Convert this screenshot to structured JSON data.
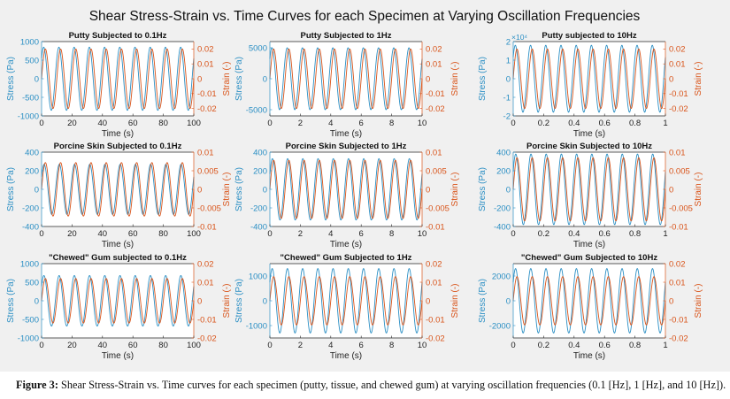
{
  "figure": {
    "suptitle": "Shear Stress-Strain vs. Time Curves for each Specimen at Varying Oscillation Frequencies",
    "caption_label": "Figure 3:",
    "caption_text": " Shear Stress-Strain vs. Time curves for each specimen (putty, tissue, and chewed gum) at varying oscillation frequencies (0.1 [Hz], 1 [Hz], and 10 [Hz])."
  },
  "colors": {
    "stress": "#2b8fc4",
    "strain": "#d9541a",
    "axis": "#262626",
    "background": "#f0f0f0",
    "plot_bg": "#ffffff"
  },
  "chart_data": [
    {
      "type": "line",
      "title": "Putty Subjected to 0.1Hz",
      "xlabel": "Time (s)",
      "ylabel_left": "Stress (Pa)",
      "ylabel_right": "Strain (-)",
      "xlim": [
        0,
        100
      ],
      "xticks": [
        "0",
        "20",
        "40",
        "60",
        "80",
        "100"
      ],
      "ylim_left": [
        -1000,
        1000
      ],
      "yticks_left": [
        "-1000",
        "-500",
        "0",
        "500",
        "1000"
      ],
      "ytick_values_left": [
        -1000,
        -500,
        0,
        500,
        1000
      ],
      "left_exponent": "",
      "ylim_right": [
        -0.025,
        0.025
      ],
      "yticks_right": [
        "-0.02",
        "-0.01",
        "0",
        "0.01",
        "0.02"
      ],
      "ytick_values_right": [
        -0.02,
        -0.01,
        0,
        0.01,
        0.02
      ],
      "series": [
        {
          "name": "Stress",
          "axis": "left",
          "amplitude": 850,
          "frequency_hz": 0.1,
          "phase_deg": 40
        },
        {
          "name": "Strain",
          "axis": "right",
          "amplitude": 0.02,
          "frequency_hz": 0.1,
          "phase_deg": 0
        }
      ]
    },
    {
      "type": "line",
      "title": "Putty Subjected to 1Hz",
      "xlabel": "Time (s)",
      "ylabel_left": "Stress (Pa)",
      "ylabel_right": "Strain (-)",
      "xlim": [
        0,
        10
      ],
      "xticks": [
        "0",
        "2",
        "4",
        "6",
        "8",
        "10"
      ],
      "ylim_left": [
        -6000,
        6000
      ],
      "yticks_left": [
        "-5000",
        "0",
        "5000"
      ],
      "ytick_values_left": [
        -5000,
        0,
        5000
      ],
      "left_exponent": "",
      "ylim_right": [
        -0.025,
        0.025
      ],
      "yticks_right": [
        "-0.02",
        "-0.01",
        "0",
        "0.01",
        "0.02"
      ],
      "ytick_values_right": [
        -0.02,
        -0.01,
        0,
        0.01,
        0.02
      ],
      "series": [
        {
          "name": "Stress",
          "axis": "left",
          "amplitude": 5000,
          "frequency_hz": 1,
          "phase_deg": 40
        },
        {
          "name": "Strain",
          "axis": "right",
          "amplitude": 0.02,
          "frequency_hz": 1,
          "phase_deg": 0
        }
      ]
    },
    {
      "type": "line",
      "title": "Putty subjected to 10Hz",
      "xlabel": "Time (s)",
      "ylabel_left": "Stress (Pa)",
      "ylabel_right": "Strain (-)",
      "xlim": [
        0,
        1
      ],
      "xticks": [
        "0",
        "0.2",
        "0.4",
        "0.6",
        "0.8",
        "1"
      ],
      "ylim_left": [
        -20000,
        20000
      ],
      "yticks_left": [
        "-2",
        "-1",
        "0",
        "1",
        "2"
      ],
      "ytick_values_left": [
        -20000,
        -10000,
        0,
        10000,
        20000
      ],
      "left_exponent": "×10⁴",
      "ylim_right": [
        -0.025,
        0.025
      ],
      "yticks_right": [
        "-0.02",
        "-0.01",
        "0",
        "0.01",
        "0.02"
      ],
      "ytick_values_right": [
        -0.02,
        -0.01,
        0,
        0.01,
        0.02
      ],
      "series": [
        {
          "name": "Stress",
          "axis": "left",
          "amplitude": 18000,
          "frequency_hz": 10,
          "phase_deg": 40
        },
        {
          "name": "Strain",
          "axis": "right",
          "amplitude": 0.02,
          "frequency_hz": 10,
          "phase_deg": 0
        }
      ]
    },
    {
      "type": "line",
      "title": "Porcine Skin Subjected to 0.1Hz",
      "xlabel": "Time (s)",
      "ylabel_left": "Stress (Pa)",
      "ylabel_right": "Strain (-)",
      "xlim": [
        0,
        100
      ],
      "xticks": [
        "0",
        "20",
        "40",
        "60",
        "80",
        "100"
      ],
      "ylim_left": [
        -400,
        400
      ],
      "yticks_left": [
        "-400",
        "-200",
        "0",
        "200",
        "400"
      ],
      "ytick_values_left": [
        -400,
        -200,
        0,
        200,
        400
      ],
      "left_exponent": "",
      "ylim_right": [
        -0.01,
        0.01
      ],
      "yticks_right": [
        "-0.01",
        "-0.005",
        "0",
        "0.005",
        "0.01"
      ],
      "ytick_values_right": [
        -0.01,
        -0.005,
        0,
        0.005,
        0.01
      ],
      "series": [
        {
          "name": "Stress",
          "axis": "left",
          "amplitude": 270,
          "frequency_hz": 0.1,
          "phase_deg": 30
        },
        {
          "name": "Strain",
          "axis": "right",
          "amplitude": 0.0072,
          "frequency_hz": 0.1,
          "phase_deg": 0
        }
      ]
    },
    {
      "type": "line",
      "title": "Porcine Skin Subjected to 1Hz",
      "xlabel": "Time (s)",
      "ylabel_left": "Stress (Pa)",
      "ylabel_right": "Strain (-)",
      "xlim": [
        0,
        10
      ],
      "xticks": [
        "0",
        "2",
        "4",
        "6",
        "8",
        "10"
      ],
      "ylim_left": [
        -400,
        400
      ],
      "yticks_left": [
        "-400",
        "-200",
        "0",
        "200",
        "400"
      ],
      "ytick_values_left": [
        -400,
        -200,
        0,
        200,
        400
      ],
      "left_exponent": "",
      "ylim_right": [
        -0.01,
        0.01
      ],
      "yticks_right": [
        "-0.01",
        "-0.005",
        "0",
        "0.005",
        "0.01"
      ],
      "ytick_values_right": [
        -0.01,
        -0.005,
        0,
        0.005,
        0.01
      ],
      "series": [
        {
          "name": "Stress",
          "axis": "left",
          "amplitude": 330,
          "frequency_hz": 1,
          "phase_deg": 30
        },
        {
          "name": "Strain",
          "axis": "right",
          "amplitude": 0.0078,
          "frequency_hz": 1,
          "phase_deg": 0
        }
      ]
    },
    {
      "type": "line",
      "title": "Porcine Skin Subjected to 10Hz",
      "xlabel": "Time (s)",
      "ylabel_left": "Stress (Pa)",
      "ylabel_right": "Strain (-)",
      "xlim": [
        0,
        1
      ],
      "xticks": [
        "0",
        "0.2",
        "0.4",
        "0.6",
        "0.8",
        "1"
      ],
      "ylim_left": [
        -400,
        400
      ],
      "yticks_left": [
        "-400",
        "-200",
        "0",
        "200",
        "400"
      ],
      "ytick_values_left": [
        -400,
        -200,
        0,
        200,
        400
      ],
      "left_exponent": "",
      "ylim_right": [
        -0.01,
        0.01
      ],
      "yticks_right": [
        "-0.01",
        "-0.005",
        "0",
        "0.005",
        "0.01"
      ],
      "ytick_values_right": [
        -0.01,
        -0.005,
        0,
        0.005,
        0.01
      ],
      "series": [
        {
          "name": "Stress",
          "axis": "left",
          "amplitude": 380,
          "frequency_hz": 10,
          "phase_deg": 30
        },
        {
          "name": "Strain",
          "axis": "right",
          "amplitude": 0.0085,
          "frequency_hz": 10,
          "phase_deg": 0
        }
      ]
    },
    {
      "type": "line",
      "title": "\"Chewed\" Gum subjected to 0.1Hz",
      "xlabel": "Time (s)",
      "ylabel_left": "Stress (Pa)",
      "ylabel_right": "Strain (-)",
      "xlim": [
        0,
        100
      ],
      "xticks": [
        "0",
        "20",
        "40",
        "60",
        "80",
        "100"
      ],
      "ylim_left": [
        -1000,
        1000
      ],
      "yticks_left": [
        "-1000",
        "-500",
        "0",
        "500",
        "1000"
      ],
      "ytick_values_left": [
        -1000,
        -500,
        0,
        500,
        1000
      ],
      "left_exponent": "",
      "ylim_right": [
        -0.02,
        0.02
      ],
      "yticks_right": [
        "-0.02",
        "-0.01",
        "0",
        "0.01",
        "0.02"
      ],
      "ytick_values_right": [
        -0.02,
        -0.01,
        0,
        0.01,
        0.02
      ],
      "series": [
        {
          "name": "Stress",
          "axis": "left",
          "amplitude": 680,
          "frequency_hz": 0.1,
          "phase_deg": 35
        },
        {
          "name": "Strain",
          "axis": "right",
          "amplitude": 0.012,
          "frequency_hz": 0.1,
          "phase_deg": 0
        }
      ]
    },
    {
      "type": "line",
      "title": "\"Chewed\" Gum Subjected to 1Hz",
      "xlabel": "Time (s)",
      "ylabel_left": "Stress (Pa)",
      "ylabel_right": "Strain (-)",
      "xlim": [
        0,
        10
      ],
      "xticks": [
        "0",
        "2",
        "4",
        "6",
        "8",
        "10"
      ],
      "ylim_left": [
        -1500,
        1500
      ],
      "yticks_left": [
        "-1000",
        "0",
        "1000"
      ],
      "ytick_values_left": [
        -1000,
        0,
        1000
      ],
      "left_exponent": "",
      "ylim_right": [
        -0.02,
        0.02
      ],
      "yticks_right": [
        "-0.02",
        "-0.01",
        "0",
        "0.01",
        "0.02"
      ],
      "ytick_values_right": [
        -0.02,
        -0.01,
        0,
        0.01,
        0.02
      ],
      "series": [
        {
          "name": "Stress",
          "axis": "left",
          "amplitude": 1300,
          "frequency_hz": 1,
          "phase_deg": 35
        },
        {
          "name": "Strain",
          "axis": "right",
          "amplitude": 0.013,
          "frequency_hz": 1,
          "phase_deg": 0
        }
      ]
    },
    {
      "type": "line",
      "title": "\"Chewed\" Gum Subjected to 10Hz",
      "xlabel": "Time (s)",
      "ylabel_left": "Stress (Pa)",
      "ylabel_right": "Strain (-)",
      "xlim": [
        0,
        1
      ],
      "xticks": [
        "0",
        "0.2",
        "0.4",
        "0.6",
        "0.8",
        "1"
      ],
      "ylim_left": [
        -3000,
        3000
      ],
      "yticks_left": [
        "-2000",
        "0",
        "2000"
      ],
      "ytick_values_left": [
        -2000,
        0,
        2000
      ],
      "left_exponent": "",
      "ylim_right": [
        -0.02,
        0.02
      ],
      "yticks_right": [
        "-0.02",
        "-0.01",
        "0",
        "0.01",
        "0.02"
      ],
      "ytick_values_right": [
        -0.02,
        -0.01,
        0,
        0.01,
        0.02
      ],
      "series": [
        {
          "name": "Stress",
          "axis": "left",
          "amplitude": 2600,
          "frequency_hz": 10,
          "phase_deg": 35
        },
        {
          "name": "Strain",
          "axis": "right",
          "amplitude": 0.013,
          "frequency_hz": 10,
          "phase_deg": 0
        }
      ]
    }
  ]
}
